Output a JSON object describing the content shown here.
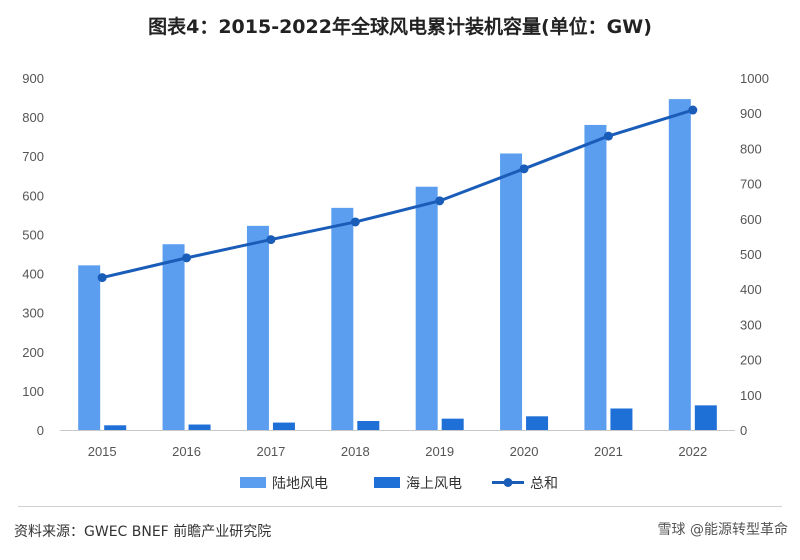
{
  "title": "图表4：2015-2022年全球风电累计装机容量(单位：GW)",
  "source": "资料来源：GWEC BNEF 前瞻产业研究院",
  "watermark": "雪球 @能源转型革命",
  "colors": {
    "onshore": "#5b9ef0",
    "offshore": "#1e6fd6",
    "total": "#1a5db8"
  },
  "chart_data": {
    "type": "bar",
    "categories": [
      "2015",
      "2016",
      "2017",
      "2018",
      "2019",
      "2020",
      "2021",
      "2022"
    ],
    "series": [
      {
        "name": "陆地风电",
        "type": "bar",
        "axis": "left",
        "values": [
          421,
          475,
          522,
          568,
          622,
          707,
          780,
          846
        ]
      },
      {
        "name": "海上风电",
        "type": "bar",
        "axis": "left",
        "values": [
          12,
          14,
          19,
          23,
          29,
          35,
          55,
          63
        ]
      },
      {
        "name": "总和",
        "type": "line",
        "axis": "right",
        "values": [
          433,
          489,
          541,
          591,
          651,
          742,
          835,
          909
        ]
      }
    ],
    "y_left": {
      "min": 0,
      "max": 900,
      "ticks": [
        0,
        100,
        200,
        300,
        400,
        500,
        600,
        700,
        800,
        900
      ]
    },
    "y_right": {
      "min": 0,
      "max": 1000,
      "ticks": [
        0,
        100,
        200,
        300,
        400,
        500,
        600,
        700,
        800,
        900,
        1000
      ]
    },
    "grid": false,
    "legend_position": "bottom"
  }
}
